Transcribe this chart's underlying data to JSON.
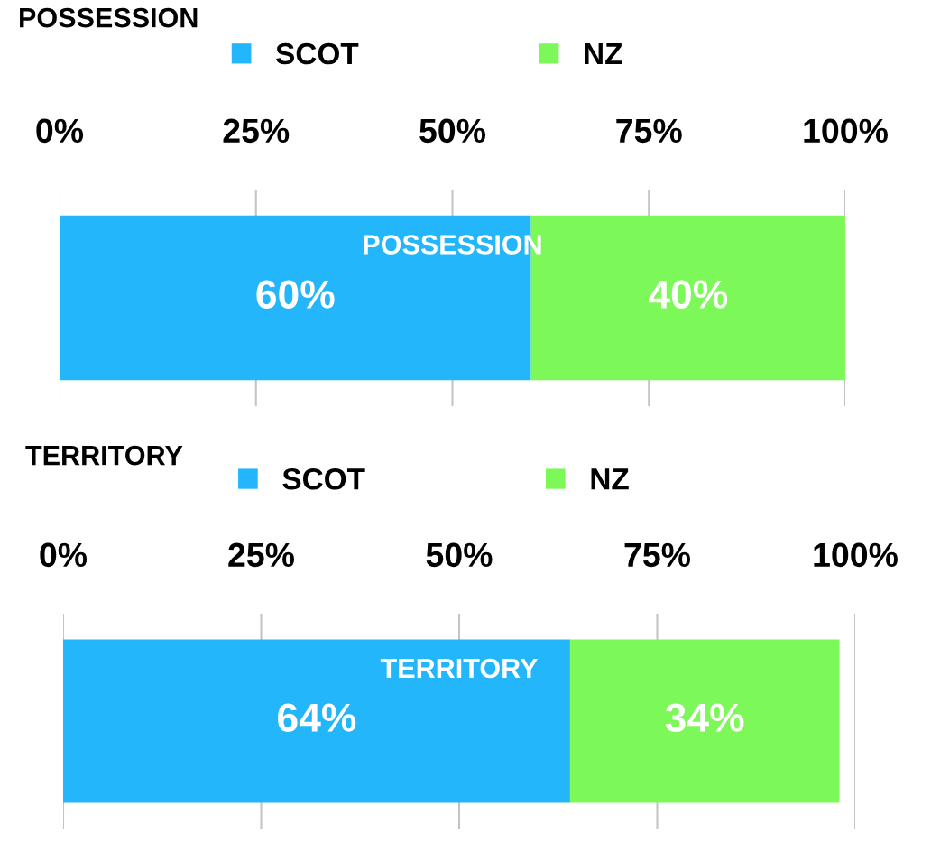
{
  "chart_data": [
    {
      "type": "bar",
      "orientation": "horizontal",
      "stacked": true,
      "title": "POSSESSION",
      "categories": [
        "POSSESSION"
      ],
      "series": [
        {
          "name": "SCOT",
          "color": "#24b6fb",
          "values": [
            60
          ],
          "value_labels": [
            "60%"
          ]
        },
        {
          "name": "NZ",
          "color": "#7cf958",
          "values": [
            40
          ],
          "value_labels": [
            "40%"
          ]
        }
      ],
      "xlim": [
        0,
        100
      ],
      "xticks": [
        {
          "value": 0,
          "label": "0%"
        },
        {
          "value": 25,
          "label": "25%"
        },
        {
          "value": 50,
          "label": "50%"
        },
        {
          "value": 75,
          "label": "75%"
        },
        {
          "value": 100,
          "label": "100%"
        }
      ],
      "grid": "x",
      "legend": "top"
    },
    {
      "type": "bar",
      "orientation": "horizontal",
      "stacked": true,
      "title": "TERRITORY",
      "categories": [
        "TERRITORY"
      ],
      "series": [
        {
          "name": "SCOT",
          "color": "#24b6fb",
          "values": [
            64
          ],
          "value_labels": [
            "64%"
          ]
        },
        {
          "name": "NZ",
          "color": "#7cf958",
          "values": [
            34
          ],
          "value_labels": [
            "34%"
          ]
        }
      ],
      "xlim": [
        0,
        100
      ],
      "xticks": [
        {
          "value": 0,
          "label": "0%"
        },
        {
          "value": 25,
          "label": "25%"
        },
        {
          "value": 50,
          "label": "50%"
        },
        {
          "value": 75,
          "label": "75%"
        },
        {
          "value": 100,
          "label": "100%"
        }
      ],
      "grid": "x",
      "legend": "top"
    }
  ]
}
